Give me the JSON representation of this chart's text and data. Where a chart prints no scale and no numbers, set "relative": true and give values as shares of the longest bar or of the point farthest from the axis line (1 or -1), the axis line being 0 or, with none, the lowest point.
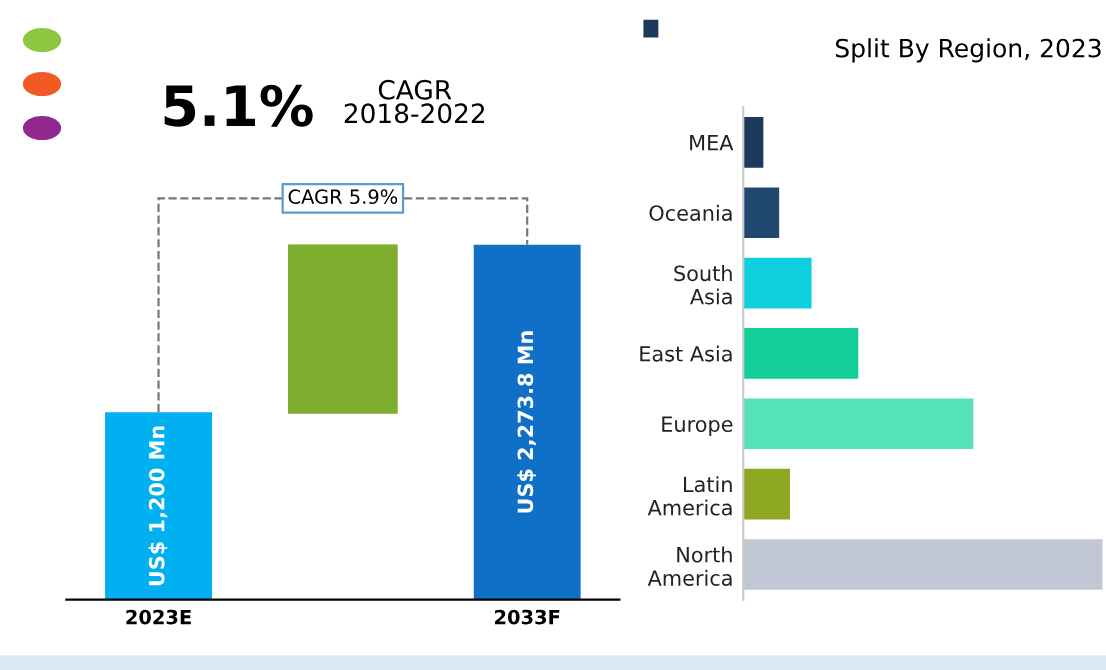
{
  "chart_data": [
    {
      "type": "bar",
      "categories": [
        "2023E",
        null,
        "2033F"
      ],
      "values": [
        1200,
        null,
        2273.8
      ],
      "colors": [
        "#00b0f0",
        "#7fad2e",
        "#1070c8"
      ],
      "value_labels": [
        "US$ 1,200 Mn",
        null,
        "US$ 2,273.8 Mn"
      ],
      "annotations": [
        "5.1%",
        "CAGR\n2018-2022",
        "CAGR 5.9%"
      ],
      "tick_labels": "x",
      "grid": false,
      "legend": false
    },
    {
      "type": "bar",
      "orientation": "horizontal",
      "relative": true,
      "title": "Split By Region, 2023",
      "categories": [
        "MEA",
        "Oceania",
        "South\nAsia",
        "East Asia",
        "Europe",
        "Latin\nAmerica",
        "North\nAmerica"
      ],
      "values": [
        0.056,
        0.1,
        0.19,
        0.32,
        0.64,
        0.13,
        1
      ],
      "colors": [
        "#1b3a5c",
        "#21486e",
        "#0fcfdf",
        "#12cf9a",
        "#55e2b8",
        "#8ea722",
        "#c1c7d4"
      ],
      "tick_labels": "y",
      "grid": false,
      "legend": false
    }
  ]
}
